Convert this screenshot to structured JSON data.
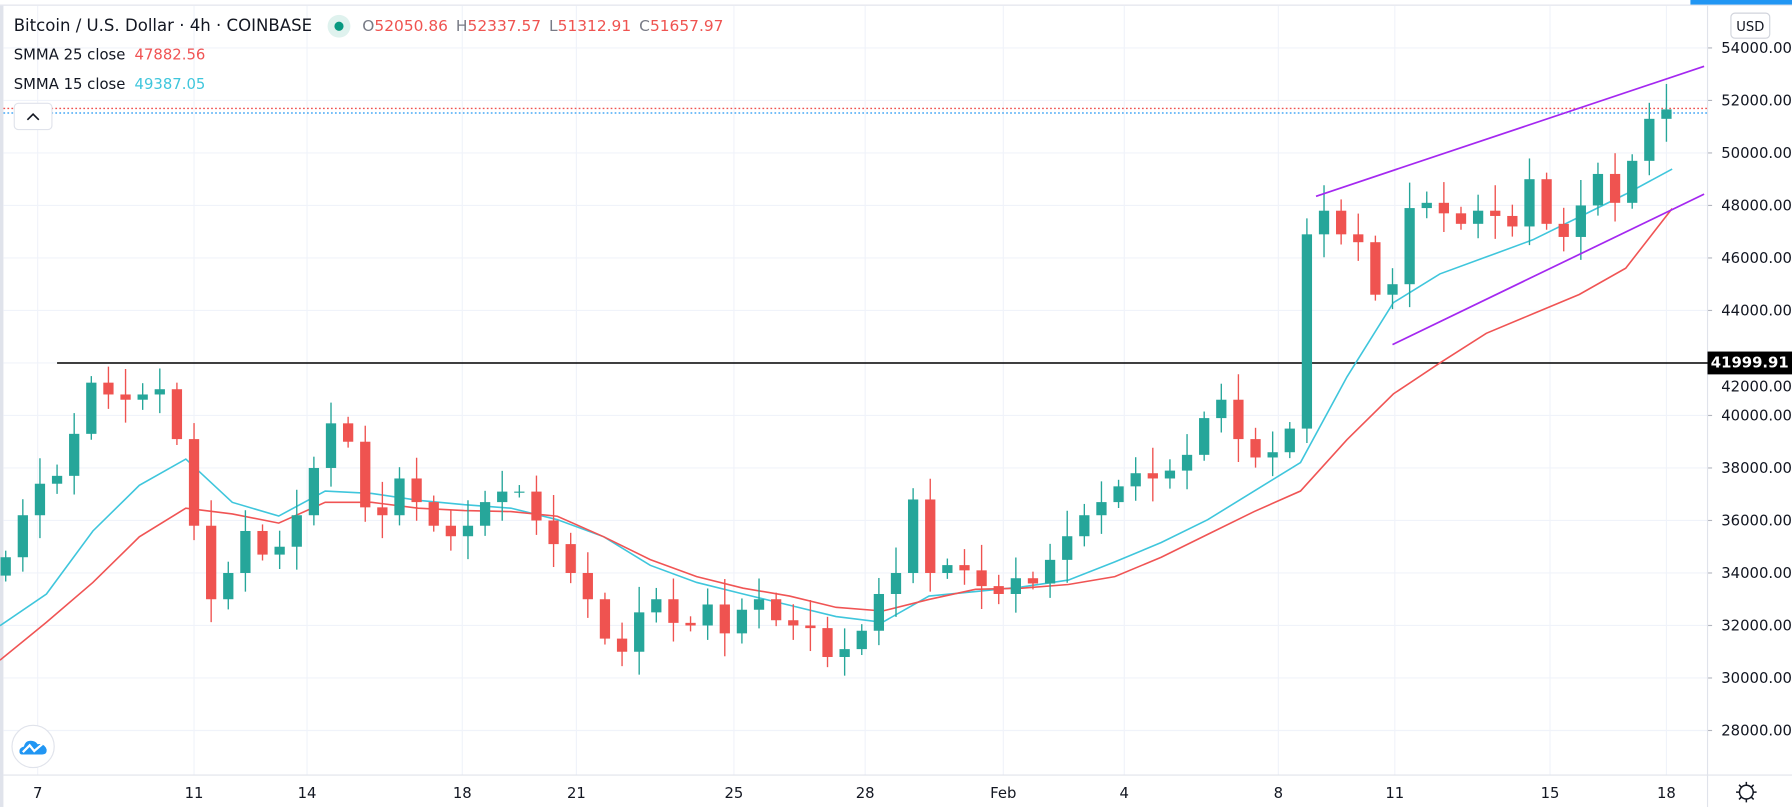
{
  "header": {
    "symbol_title": "Bitcoin / U.S. Dollar · 4h · COINBASE",
    "ohlc": {
      "o_label": "O",
      "o": "52050.86",
      "h_label": "H",
      "h": "52337.57",
      "l_label": "L",
      "l": "51312.91",
      "c_label": "C",
      "c": "51657.97"
    },
    "market_status_icon": "green-dot"
  },
  "indicators": [
    {
      "label": "SMMA 25 close",
      "value": "47882.56",
      "color": "#f05454"
    },
    {
      "label": "SMMA 15 close",
      "value": "49387.05",
      "color": "#3fc6dc"
    }
  ],
  "price_axis": {
    "currency": "USD"
  },
  "horizontal_line": {
    "price": 41999.91,
    "label": "41999.91",
    "color": "#000000"
  },
  "colors": {
    "up": "#26a69a",
    "down": "#ef5350",
    "trendline": "#a428f0",
    "last_price_line": "#ef5350",
    "bid_line": "#2196f3",
    "accent": "#2196f3"
  },
  "chart_data": {
    "type": "candlestick",
    "title": "",
    "interval": "4h",
    "ylim": [
      26000,
      55800
    ],
    "yticks": [
      "54000.00",
      "52000.00",
      "50000.00",
      "48000.00",
      "46000.00",
      "44000.00",
      "42000.00",
      "40000.00",
      "38000.00",
      "36000.00",
      "34000.00",
      "32000.00",
      "30000.00",
      "28000.00"
    ],
    "ytick_values": [
      54000,
      52000,
      50000,
      48000,
      46000,
      44000,
      42000,
      40000,
      38000,
      36000,
      34000,
      32000,
      30000,
      28000
    ],
    "xticks": [
      "7",
      "11",
      "14",
      "18",
      "21",
      "25",
      "28",
      "Feb",
      "4",
      "8",
      "11",
      "15",
      "18"
    ],
    "grid": true,
    "closes": [
      34600,
      36200,
      37400,
      37700,
      39300,
      41250,
      40800,
      40600,
      40800,
      41000,
      39100,
      35800,
      33000,
      34000,
      35600,
      34700,
      35000,
      36200,
      38000,
      39700,
      39000,
      36500,
      36200,
      37600,
      36700,
      35800,
      35400,
      35800,
      36700,
      37100,
      37100,
      36000,
      35100,
      34000,
      33000,
      31500,
      31000,
      32500,
      33000,
      32100,
      32000,
      32800,
      31700,
      32600,
      33000,
      32200,
      32000,
      31900,
      30800,
      31100,
      31800,
      33200,
      34000,
      36800,
      34000,
      34300,
      34100,
      33500,
      33200,
      33800,
      33600,
      34500,
      35400,
      36200,
      36700,
      37300,
      37800,
      37600,
      37900,
      38500,
      39900,
      40600,
      39100,
      38400,
      38600,
      39500,
      46900,
      47800,
      46900,
      46600,
      44600,
      45000,
      47900,
      48100,
      47700,
      47300,
      47800,
      47600,
      47200,
      49000,
      47300,
      46800,
      48000,
      49200,
      48100,
      49700,
      51300,
      51658
    ],
    "series": [
      {
        "name": "SMMA 15 close",
        "color": "#3fc6dc",
        "values": [
          31990,
          33200,
          35600,
          37340,
          38340,
          36690,
          36170,
          37120,
          37030,
          36770,
          36600,
          36470,
          36030,
          35380,
          34290,
          33640,
          33200,
          32770,
          32340,
          32120,
          33120,
          33290,
          33470,
          33730,
          34420,
          35160,
          36030,
          37120,
          38210,
          41470,
          44300,
          45390,
          46040,
          46690,
          47560,
          48430,
          49387
        ]
      },
      {
        "name": "SMMA 25 close",
        "color": "#f05454",
        "values": [
          30680,
          32120,
          33640,
          35380,
          36470,
          36250,
          35900,
          36690,
          36690,
          36470,
          36380,
          36340,
          36160,
          35380,
          34510,
          33860,
          33420,
          33120,
          32690,
          32550,
          32990,
          33380,
          33420,
          33560,
          33860,
          34600,
          35470,
          36340,
          37120,
          39080,
          40820,
          42000,
          43130,
          43870,
          44610,
          45610,
          47882
        ]
      }
    ],
    "trendlines": [
      {
        "name": "upper channel",
        "from_price": 48350,
        "to_price": 53300
      },
      {
        "name": "lower channel",
        "from_price": 42700,
        "to_price": 48430
      }
    ],
    "last_price": 51657.97
  }
}
